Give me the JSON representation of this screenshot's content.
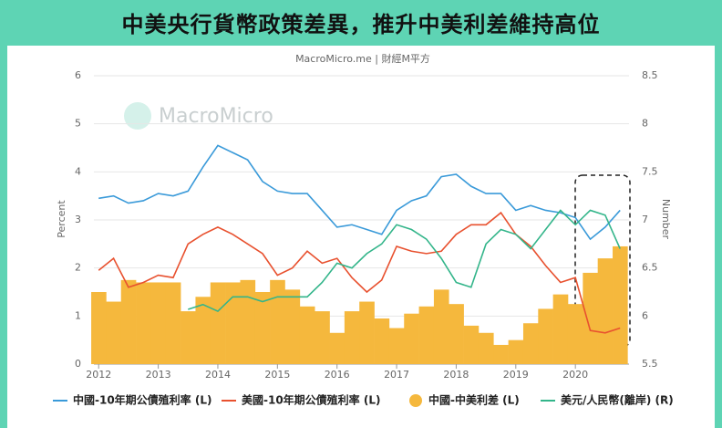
{
  "chart_data": {
    "type": "combo",
    "title": "中美央行貨幣政策差異，推升中美利差維持高位",
    "subtitle": "MacroMicro.me | 財經M平方",
    "watermark": "MacroMicro",
    "ylabel": "Percent",
    "y2label": "Number",
    "x": [
      2012,
      2012.25,
      2012.5,
      2012.75,
      2013,
      2013.25,
      2013.5,
      2013.75,
      2014,
      2014.25,
      2014.5,
      2014.75,
      2015,
      2015.25,
      2015.5,
      2015.75,
      2016,
      2016.25,
      2016.5,
      2016.75,
      2017,
      2017.25,
      2017.5,
      2017.75,
      2018,
      2018.25,
      2018.5,
      2018.75,
      2019,
      2019.25,
      2019.5,
      2019.75,
      2020,
      2020.25,
      2020.5,
      2020.75
    ],
    "xlim": [
      2011.92,
      2020.9
    ],
    "xticks": [
      2012,
      2013,
      2014,
      2015,
      2016,
      2017,
      2018,
      2019,
      2020
    ],
    "ylim": [
      0,
      6
    ],
    "yticks": [
      0,
      1,
      2,
      3,
      4,
      5,
      6
    ],
    "y2lim": [
      5.5,
      8.5
    ],
    "y2ticks": [
      5.5,
      6,
      6.5,
      7,
      7.5,
      8,
      8.5
    ],
    "grid": true,
    "series": [
      {
        "name": "中國-10年期公債殖利率 (L)",
        "type": "line",
        "color": "#3a9ad9",
        "values": [
          3.45,
          3.5,
          3.35,
          3.4,
          3.55,
          3.5,
          3.6,
          4.1,
          4.55,
          4.4,
          4.25,
          3.8,
          3.6,
          3.55,
          3.55,
          3.2,
          2.85,
          2.9,
          2.8,
          2.7,
          3.2,
          3.4,
          3.5,
          3.9,
          3.95,
          3.7,
          3.55,
          3.55,
          3.2,
          3.3,
          3.2,
          3.15,
          3.05,
          2.6,
          2.85,
          3.2
        ]
      },
      {
        "name": "美國-10年期公債殖利率 (L)",
        "type": "line",
        "color": "#e8512f",
        "values": [
          1.95,
          2.2,
          1.6,
          1.7,
          1.85,
          1.8,
          2.5,
          2.7,
          2.85,
          2.7,
          2.5,
          2.3,
          1.85,
          2.0,
          2.35,
          2.1,
          2.2,
          1.8,
          1.5,
          1.75,
          2.45,
          2.35,
          2.3,
          2.35,
          2.7,
          2.9,
          2.9,
          3.15,
          2.7,
          2.45,
          2.05,
          1.7,
          1.8,
          0.7,
          0.65,
          0.75
        ]
      },
      {
        "name": "中國-中美利差 (L)",
        "type": "bar",
        "color": "#f5b83d",
        "values": [
          1.5,
          1.3,
          1.75,
          1.7,
          1.7,
          1.7,
          1.1,
          1.4,
          1.7,
          1.7,
          1.75,
          1.5,
          1.75,
          1.55,
          1.2,
          1.1,
          0.65,
          1.1,
          1.3,
          0.95,
          0.75,
          1.05,
          1.2,
          1.55,
          1.25,
          0.8,
          0.65,
          0.4,
          0.5,
          0.85,
          1.15,
          1.45,
          1.25,
          1.9,
          2.2,
          2.45
        ]
      },
      {
        "name": "美元/人民幣(離岸) (R)",
        "type": "line",
        "axis": "y2",
        "color": "#33b58a",
        "values": [
          null,
          null,
          null,
          null,
          null,
          null,
          6.07,
          6.12,
          6.05,
          6.2,
          6.2,
          6.15,
          6.2,
          6.2,
          6.2,
          6.35,
          6.55,
          6.5,
          6.65,
          6.75,
          6.95,
          6.9,
          6.8,
          6.6,
          6.35,
          6.3,
          6.75,
          6.9,
          6.85,
          6.7,
          6.9,
          7.1,
          6.95,
          7.1,
          7.05,
          6.7
        ]
      }
    ]
  }
}
